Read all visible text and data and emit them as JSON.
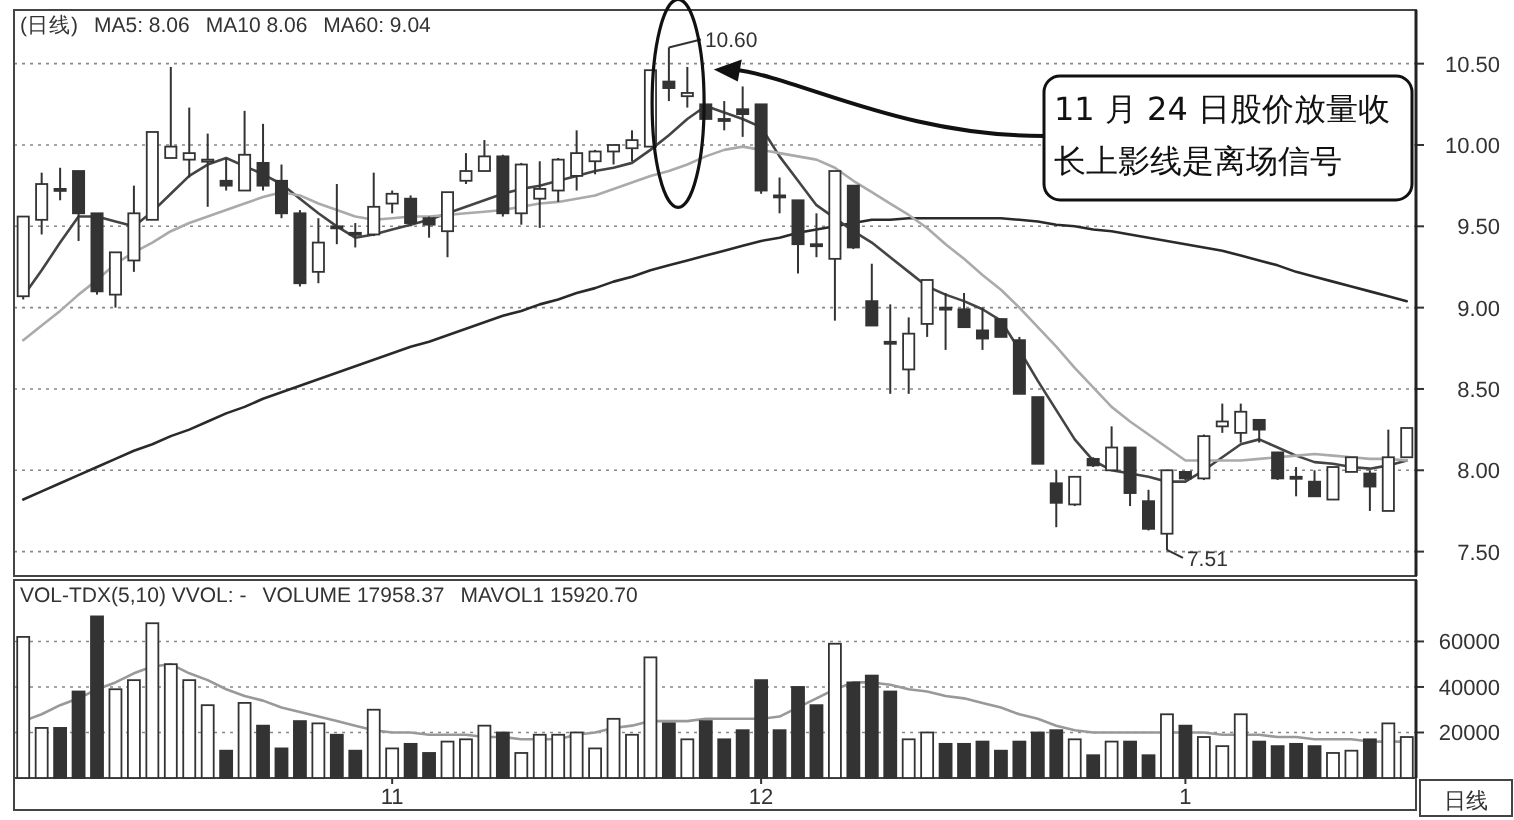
{
  "chart_data": [
    {
      "type": "candlestick",
      "categories": [
        null,
        null,
        null,
        null,
        null,
        null,
        null,
        null,
        null,
        null,
        null,
        null,
        null,
        null,
        null,
        null,
        null,
        null,
        null,
        null,
        "11",
        null,
        null,
        null,
        null,
        null,
        null,
        null,
        null,
        null,
        null,
        null,
        null,
        null,
        null,
        null,
        null,
        null,
        null,
        null,
        "12",
        null,
        null,
        null,
        null,
        null,
        null,
        null,
        null,
        null,
        null,
        null,
        null,
        null,
        null,
        null,
        null,
        null,
        null,
        null,
        null,
        null,
        null,
        "1",
        null,
        null,
        null,
        null,
        null,
        null,
        null,
        null,
        null,
        null,
        null,
        null
      ],
      "ohlc": [
        [
          9.07,
          9.56,
          9.05,
          9.56
        ],
        [
          9.54,
          9.83,
          9.45,
          9.76
        ],
        [
          9.73,
          9.86,
          9.66,
          9.72
        ],
        [
          9.84,
          9.84,
          9.41,
          9.58
        ],
        [
          9.58,
          9.58,
          9.08,
          9.1
        ],
        [
          9.08,
          9.34,
          9.0,
          9.34
        ],
        [
          9.29,
          9.75,
          9.22,
          9.58
        ],
        [
          9.54,
          10.08,
          9.54,
          10.08
        ],
        [
          9.92,
          10.48,
          9.92,
          9.99
        ],
        [
          9.91,
          10.23,
          9.8,
          9.95
        ],
        [
          9.9,
          10.07,
          9.62,
          9.91
        ],
        [
          9.78,
          9.92,
          9.72,
          9.75
        ],
        [
          9.72,
          10.21,
          9.72,
          9.94
        ],
        [
          9.89,
          10.13,
          9.72,
          9.75
        ],
        [
          9.78,
          9.88,
          9.55,
          9.58
        ],
        [
          9.58,
          9.6,
          9.13,
          9.15
        ],
        [
          9.22,
          9.55,
          9.15,
          9.4
        ],
        [
          9.5,
          9.76,
          9.39,
          9.49
        ],
        [
          9.46,
          9.52,
          9.37,
          9.45
        ],
        [
          9.45,
          9.83,
          9.44,
          9.62
        ],
        [
          9.64,
          9.72,
          9.58,
          9.7
        ],
        [
          9.67,
          9.69,
          9.5,
          9.52
        ],
        [
          9.55,
          9.56,
          9.43,
          9.51
        ],
        [
          9.47,
          9.71,
          9.31,
          9.71
        ],
        [
          9.78,
          9.95,
          9.76,
          9.84
        ],
        [
          9.84,
          10.03,
          9.84,
          9.93
        ],
        [
          9.93,
          9.94,
          9.56,
          9.58
        ],
        [
          9.58,
          9.89,
          9.51,
          9.88
        ],
        [
          9.67,
          9.9,
          9.49,
          9.73
        ],
        [
          9.72,
          9.92,
          9.65,
          9.91
        ],
        [
          9.81,
          10.09,
          9.72,
          9.95
        ],
        [
          9.9,
          9.97,
          9.82,
          9.96
        ],
        [
          9.96,
          10.0,
          9.88,
          10.0
        ],
        [
          9.98,
          10.09,
          9.9,
          10.03
        ],
        [
          9.99,
          10.46,
          9.99,
          10.46
        ],
        [
          10.39,
          10.6,
          10.27,
          10.35
        ],
        [
          10.3,
          10.48,
          10.23,
          10.32
        ],
        [
          10.25,
          10.25,
          10.16,
          10.16
        ],
        [
          10.16,
          10.27,
          10.09,
          10.15
        ],
        [
          10.22,
          10.36,
          10.05,
          10.19
        ],
        [
          10.25,
          10.25,
          9.7,
          9.72
        ],
        [
          9.69,
          9.8,
          9.58,
          9.68
        ],
        [
          9.66,
          9.66,
          9.21,
          9.39
        ],
        [
          9.39,
          9.58,
          9.31,
          9.38
        ],
        [
          9.3,
          9.84,
          8.92,
          9.84
        ],
        [
          9.75,
          9.75,
          9.36,
          9.37
        ],
        [
          9.04,
          9.27,
          8.89,
          8.89
        ],
        [
          8.79,
          9.02,
          8.47,
          8.78
        ],
        [
          8.62,
          8.94,
          8.47,
          8.84
        ],
        [
          8.9,
          9.17,
          8.82,
          9.17
        ],
        [
          9.0,
          9.09,
          8.74,
          8.99
        ],
        [
          8.99,
          9.09,
          8.88,
          8.88
        ],
        [
          8.86,
          9.0,
          8.74,
          8.81
        ],
        [
          8.93,
          8.93,
          8.82,
          8.82
        ],
        [
          8.8,
          8.82,
          8.47,
          8.47
        ],
        [
          8.45,
          8.45,
          8.04,
          8.04
        ],
        [
          7.92,
          8.0,
          7.65,
          7.8
        ],
        [
          7.79,
          7.96,
          7.78,
          7.96
        ],
        [
          8.07,
          8.08,
          8.02,
          8.03
        ],
        [
          8.0,
          8.27,
          8.0,
          8.14
        ],
        [
          8.14,
          8.14,
          7.78,
          7.86
        ],
        [
          7.81,
          7.88,
          7.63,
          7.64
        ],
        [
          7.61,
          8.0,
          7.51,
          8.0
        ],
        [
          7.99,
          7.99,
          7.94,
          7.95
        ],
        [
          7.95,
          8.22,
          7.94,
          8.21
        ],
        [
          8.27,
          8.41,
          8.23,
          8.3
        ],
        [
          8.23,
          8.41,
          8.17,
          8.36
        ],
        [
          8.31,
          8.31,
          8.17,
          8.25
        ],
        [
          8.11,
          8.11,
          7.94,
          7.95
        ],
        [
          7.96,
          8.02,
          7.84,
          7.95
        ],
        [
          7.93,
          8.0,
          7.84,
          7.84
        ],
        [
          7.82,
          8.02,
          7.82,
          8.02
        ],
        [
          7.99,
          8.08,
          7.99,
          8.08
        ],
        [
          7.98,
          8.0,
          7.75,
          7.9
        ],
        [
          7.75,
          8.25,
          7.75,
          8.08
        ],
        [
          8.08,
          8.26,
          8.08,
          8.26
        ]
      ],
      "series": [
        {
          "type": "line",
          "color": "#2a2a2a",
          "values": [
            7.82,
            7.87,
            7.92,
            7.97,
            8.02,
            8.07,
            8.12,
            8.16,
            8.21,
            8.25,
            8.3,
            8.35,
            8.39,
            8.44,
            8.48,
            8.52,
            8.56,
            8.6,
            8.64,
            8.68,
            8.72,
            8.76,
            8.79,
            8.83,
            8.87,
            8.91,
            8.95,
            8.98,
            9.02,
            9.05,
            9.09,
            9.12,
            9.16,
            9.19,
            9.23,
            9.26,
            9.29,
            9.32,
            9.35,
            9.38,
            9.41,
            9.43,
            9.46,
            9.48,
            9.5,
            9.52,
            9.54,
            9.54,
            9.55,
            9.55,
            9.55,
            9.55,
            9.55,
            9.55,
            9.54,
            9.53,
            9.51,
            9.5,
            9.48,
            9.47,
            9.45,
            9.43,
            9.41,
            9.39,
            9.37,
            9.35,
            9.32,
            9.29,
            9.26,
            9.22,
            9.19,
            9.16,
            9.13,
            9.1,
            9.07,
            9.04
          ]
        },
        {
          "type": "line",
          "color": "#444444",
          "values": [
            9.07,
            9.23,
            9.4,
            9.56,
            9.56,
            9.53,
            9.5,
            9.59,
            9.7,
            9.81,
            9.88,
            9.92,
            9.87,
            9.82,
            9.76,
            9.67,
            9.58,
            9.5,
            9.43,
            9.45,
            9.48,
            9.51,
            9.54,
            9.58,
            9.62,
            9.66,
            9.7,
            9.73,
            9.75,
            9.78,
            9.81,
            9.84,
            9.86,
            9.89,
            9.97,
            10.06,
            10.16,
            10.24,
            10.2,
            10.16,
            10.11,
            9.93,
            9.78,
            9.63,
            9.55,
            9.47,
            9.4,
            9.31,
            9.22,
            9.13,
            9.08,
            9.04,
            8.99,
            8.92,
            8.74,
            8.55,
            8.37,
            8.19,
            8.06,
            8.0,
            7.98,
            7.96,
            7.93,
            7.93,
            8.0,
            8.08,
            8.16,
            8.19,
            8.14,
            8.09,
            8.05,
            8.04,
            8.02,
            8.01,
            8.03,
            8.06
          ]
        },
        {
          "type": "line",
          "color": "#aaaaaa",
          "values": [
            8.8,
            8.89,
            8.98,
            9.08,
            9.17,
            9.27,
            9.34,
            9.4,
            9.47,
            9.52,
            9.56,
            9.6,
            9.64,
            9.68,
            9.71,
            9.69,
            9.64,
            9.6,
            9.56,
            9.54,
            9.55,
            9.56,
            9.56,
            9.57,
            9.58,
            9.59,
            9.6,
            9.62,
            9.64,
            9.65,
            9.67,
            9.69,
            9.73,
            9.77,
            9.81,
            9.84,
            9.88,
            9.93,
            9.97,
            9.99,
            9.97,
            9.95,
            9.93,
            9.91,
            9.86,
            9.78,
            9.71,
            9.64,
            9.57,
            9.49,
            9.39,
            9.3,
            9.2,
            9.11,
            9.0,
            8.88,
            8.76,
            8.63,
            8.51,
            8.39,
            8.3,
            8.22,
            8.14,
            8.06,
            8.06,
            8.06,
            8.06,
            8.07,
            8.08,
            8.09,
            8.1,
            8.09,
            8.08,
            8.07,
            8.07,
            8.06
          ]
        }
      ],
      "ylim": [
        7.35,
        10.83
      ],
      "yticks": [
        {
          "value": 7.5,
          "label": "7.50"
        },
        {
          "value": 8,
          "label": "8.00"
        },
        {
          "value": 8.5,
          "label": "8.50"
        },
        {
          "value": 9,
          "label": "9.00"
        },
        {
          "value": 9.5,
          "label": "9.50"
        },
        {
          "value": 10,
          "label": "10.00"
        },
        {
          "value": 10.5,
          "label": "10.50"
        }
      ],
      "tick_labels": "y",
      "grid": "y",
      "annotations": [
        "(日线)",
        "MA5: 8.06",
        "MA10 8.06",
        "MA60: 9.04",
        "10.60",
        "7.51",
        "11 月 24 日股价放量收长上影线是离场信号"
      ]
    },
    {
      "type": "bar",
      "categories": [
        null,
        null,
        null,
        null,
        null,
        null,
        null,
        null,
        null,
        null,
        null,
        null,
        null,
        null,
        null,
        null,
        null,
        null,
        null,
        null,
        "11",
        null,
        null,
        null,
        null,
        null,
        null,
        null,
        null,
        null,
        null,
        null,
        null,
        null,
        null,
        null,
        null,
        null,
        null,
        null,
        "12",
        null,
        null,
        null,
        null,
        null,
        null,
        null,
        null,
        null,
        null,
        null,
        null,
        null,
        null,
        null,
        null,
        null,
        null,
        null,
        null,
        null,
        null,
        "1",
        null,
        null,
        null,
        null,
        null,
        null,
        null,
        null,
        null,
        null,
        null,
        null
      ],
      "values": [
        62000,
        22000,
        22000,
        38000,
        71000,
        39000,
        43000,
        68000,
        50000,
        43000,
        32000,
        12000,
        33000,
        23000,
        13000,
        25000,
        24000,
        19000,
        12000,
        30000,
        13000,
        15000,
        11000,
        16000,
        17000,
        23000,
        20000,
        11000,
        19000,
        19000,
        20000,
        13000,
        26000,
        19000,
        53000,
        24000,
        17000,
        25000,
        17000,
        21000,
        43000,
        21000,
        40000,
        32000,
        59000,
        42000,
        45000,
        38000,
        17000,
        20000,
        15000,
        15000,
        16000,
        12000,
        16000,
        20000,
        21000,
        17000,
        10000,
        16000,
        16000,
        10000,
        28000,
        23000,
        18000,
        14000,
        28000,
        16000,
        14000,
        15000,
        14000,
        11000,
        12000,
        17000,
        24000,
        18000
      ],
      "colors": [
        "#ffffff",
        "#ffffff",
        "#333333",
        "#333333",
        "#333333",
        "#ffffff",
        "#ffffff",
        "#ffffff",
        "#ffffff",
        "#ffffff",
        "#ffffff",
        "#333333",
        "#ffffff",
        "#333333",
        "#333333",
        "#333333",
        "#ffffff",
        "#333333",
        "#333333",
        "#ffffff",
        "#ffffff",
        "#333333",
        "#333333",
        "#ffffff",
        "#ffffff",
        "#ffffff",
        "#333333",
        "#ffffff",
        "#ffffff",
        "#ffffff",
        "#ffffff",
        "#ffffff",
        "#ffffff",
        "#ffffff",
        "#ffffff",
        "#333333",
        "#ffffff",
        "#333333",
        "#333333",
        "#333333",
        "#333333",
        "#333333",
        "#333333",
        "#333333",
        "#ffffff",
        "#333333",
        "#333333",
        "#333333",
        "#ffffff",
        "#ffffff",
        "#333333",
        "#333333",
        "#333333",
        "#333333",
        "#333333",
        "#333333",
        "#333333",
        "#ffffff",
        "#333333",
        "#ffffff",
        "#333333",
        "#333333",
        "#ffffff",
        "#333333",
        "#ffffff",
        "#ffffff",
        "#ffffff",
        "#333333",
        "#333333",
        "#333333",
        "#333333",
        "#ffffff",
        "#ffffff",
        "#333333",
        "#ffffff",
        "#ffffff"
      ],
      "series": [
        {
          "type": "line",
          "color": "#999999",
          "values": [
            25000,
            28000,
            32000,
            35000,
            39000,
            42000,
            46000,
            49000,
            50000,
            46000,
            43000,
            39000,
            36000,
            34000,
            31000,
            29000,
            27000,
            25000,
            23000,
            21000,
            20000,
            20000,
            19000,
            19000,
            19000,
            18000,
            18000,
            17000,
            17000,
            17000,
            19000,
            20000,
            22000,
            23000,
            25000,
            25000,
            25000,
            26000,
            26000,
            26000,
            26000,
            27000,
            31000,
            35000,
            39000,
            42000,
            42000,
            41000,
            39000,
            38000,
            36000,
            35000,
            33000,
            31000,
            28000,
            26000,
            23000,
            21000,
            20000,
            20000,
            20000,
            20000,
            20000,
            20000,
            20000,
            19000,
            19000,
            19000,
            18000,
            18000,
            17000,
            17000,
            17000,
            16000,
            16000,
            16000
          ]
        }
      ],
      "ylim": [
        0,
        87000
      ],
      "yticks": [
        20000,
        40000,
        60000
      ],
      "xlabel": "日线",
      "grid": "y",
      "annotations": [
        "VOL-TDX(5,10) VVOL: -",
        "VOLUME 17958.37",
        "MAVOL1 15920.70"
      ]
    }
  ]
}
